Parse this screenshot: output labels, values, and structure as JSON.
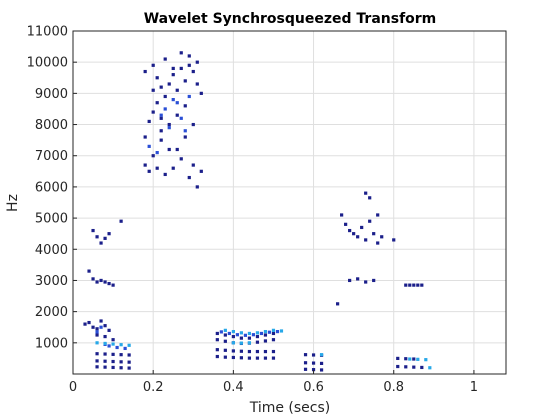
{
  "chart_data": {
    "type": "scatter",
    "title": "Wavelet Synchrosqueezed Transform",
    "xlabel": "Time (secs)",
    "ylabel": "Hz",
    "xlim": [
      0,
      1.08
    ],
    "ylim": [
      0,
      11000
    ],
    "x_ticks": [
      0,
      0.2,
      0.4,
      0.6,
      0.8,
      1
    ],
    "x_tick_labels": [
      "0",
      "0.2",
      "0.4",
      "0.6",
      "0.8",
      "1"
    ],
    "y_ticks": [
      1000,
      2000,
      3000,
      4000,
      5000,
      6000,
      7000,
      8000,
      9000,
      10000,
      11000
    ],
    "y_tick_labels": [
      "1000",
      "2000",
      "3000",
      "4000",
      "5000",
      "6000",
      "7000",
      "8000",
      "9000",
      "10000",
      "11000"
    ],
    "grid": true,
    "colors": {
      "dark": "#1b1f8a",
      "mid": "#2a4fd6",
      "light": "#27a8e8",
      "grid": "#dfdfdf",
      "axis": "#262626"
    },
    "series": [
      {
        "color": "dark",
        "points": [
          [
            0.05,
            4600
          ],
          [
            0.06,
            4400
          ],
          [
            0.08,
            4350
          ],
          [
            0.09,
            4500
          ],
          [
            0.12,
            4900
          ],
          [
            0.07,
            4200
          ],
          [
            0.04,
            3300
          ],
          [
            0.05,
            3050
          ],
          [
            0.06,
            2950
          ],
          [
            0.07,
            3000
          ],
          [
            0.08,
            2950
          ],
          [
            0.09,
            2900
          ],
          [
            0.1,
            2850
          ],
          [
            0.03,
            1600
          ],
          [
            0.04,
            1650
          ],
          [
            0.05,
            1500
          ],
          [
            0.06,
            1450
          ],
          [
            0.07,
            1700
          ],
          [
            0.08,
            1550
          ],
          [
            0.09,
            1400
          ],
          [
            0.06,
            1250
          ],
          [
            0.08,
            1200
          ],
          [
            0.1,
            1100
          ],
          [
            0.06,
            650
          ],
          [
            0.08,
            640
          ],
          [
            0.1,
            630
          ],
          [
            0.12,
            620
          ],
          [
            0.14,
            610
          ],
          [
            0.06,
            420
          ],
          [
            0.08,
            410
          ],
          [
            0.1,
            400
          ],
          [
            0.12,
            390
          ],
          [
            0.14,
            380
          ],
          [
            0.06,
            230
          ],
          [
            0.08,
            220
          ],
          [
            0.1,
            210
          ],
          [
            0.12,
            200
          ],
          [
            0.14,
            190
          ],
          [
            0.18,
            6700
          ],
          [
            0.19,
            6500
          ],
          [
            0.2,
            7000
          ],
          [
            0.21,
            6600
          ],
          [
            0.22,
            7500
          ],
          [
            0.23,
            6400
          ],
          [
            0.24,
            8000
          ],
          [
            0.25,
            6600
          ],
          [
            0.26,
            7200
          ],
          [
            0.27,
            6900
          ],
          [
            0.28,
            7600
          ],
          [
            0.29,
            6300
          ],
          [
            0.3,
            6700
          ],
          [
            0.31,
            6000
          ],
          [
            0.32,
            6500
          ],
          [
            0.18,
            7600
          ],
          [
            0.19,
            8100
          ],
          [
            0.2,
            8400
          ],
          [
            0.21,
            8700
          ],
          [
            0.22,
            9200
          ],
          [
            0.23,
            8900
          ],
          [
            0.24,
            9300
          ],
          [
            0.25,
            9600
          ],
          [
            0.26,
            9100
          ],
          [
            0.27,
            9800
          ],
          [
            0.28,
            9400
          ],
          [
            0.29,
            9900
          ],
          [
            0.3,
            9700
          ],
          [
            0.31,
            9300
          ],
          [
            0.32,
            9000
          ],
          [
            0.18,
            9700
          ],
          [
            0.2,
            9900
          ],
          [
            0.21,
            9500
          ],
          [
            0.23,
            10100
          ],
          [
            0.25,
            9800
          ],
          [
            0.27,
            10300
          ],
          [
            0.29,
            10200
          ],
          [
            0.31,
            10000
          ],
          [
            0.22,
            7800
          ],
          [
            0.24,
            7200
          ],
          [
            0.26,
            8300
          ],
          [
            0.28,
            8600
          ],
          [
            0.3,
            8000
          ],
          [
            0.2,
            9100
          ],
          [
            0.22,
            8200
          ],
          [
            0.36,
            1300
          ],
          [
            0.38,
            1250
          ],
          [
            0.4,
            1200
          ],
          [
            0.42,
            1150
          ],
          [
            0.44,
            1150
          ],
          [
            0.46,
            1200
          ],
          [
            0.48,
            1250
          ],
          [
            0.5,
            1300
          ],
          [
            0.36,
            1100
          ],
          [
            0.38,
            1050
          ],
          [
            0.4,
            1000
          ],
          [
            0.42,
            980
          ],
          [
            0.44,
            990
          ],
          [
            0.46,
            1020
          ],
          [
            0.48,
            1060
          ],
          [
            0.5,
            1100
          ],
          [
            0.36,
            780
          ],
          [
            0.38,
            760
          ],
          [
            0.4,
            740
          ],
          [
            0.42,
            730
          ],
          [
            0.44,
            720
          ],
          [
            0.46,
            720
          ],
          [
            0.48,
            720
          ],
          [
            0.5,
            720
          ],
          [
            0.36,
            560
          ],
          [
            0.38,
            540
          ],
          [
            0.4,
            530
          ],
          [
            0.42,
            520
          ],
          [
            0.44,
            510
          ],
          [
            0.46,
            510
          ],
          [
            0.48,
            510
          ],
          [
            0.5,
            510
          ],
          [
            0.58,
            620
          ],
          [
            0.6,
            610
          ],
          [
            0.62,
            600
          ],
          [
            0.58,
            360
          ],
          [
            0.6,
            350
          ],
          [
            0.62,
            340
          ],
          [
            0.58,
            150
          ],
          [
            0.6,
            140
          ],
          [
            0.62,
            130
          ],
          [
            0.67,
            5100
          ],
          [
            0.68,
            4800
          ],
          [
            0.69,
            4600
          ],
          [
            0.7,
            4500
          ],
          [
            0.71,
            4400
          ],
          [
            0.72,
            4700
          ],
          [
            0.73,
            4300
          ],
          [
            0.74,
            4900
          ],
          [
            0.75,
            4500
          ],
          [
            0.76,
            4200
          ],
          [
            0.77,
            4400
          ],
          [
            0.8,
            4300
          ],
          [
            0.73,
            5800
          ],
          [
            0.74,
            5650
          ],
          [
            0.76,
            5100
          ],
          [
            0.69,
            3000
          ],
          [
            0.71,
            3050
          ],
          [
            0.73,
            2950
          ],
          [
            0.75,
            3000
          ],
          [
            0.83,
            2850
          ],
          [
            0.84,
            2850
          ],
          [
            0.85,
            2850
          ],
          [
            0.86,
            2850
          ],
          [
            0.87,
            2850
          ],
          [
            0.66,
            2250
          ],
          [
            0.81,
            500
          ],
          [
            0.83,
            490
          ],
          [
            0.85,
            480
          ],
          [
            0.81,
            240
          ],
          [
            0.83,
            230
          ],
          [
            0.85,
            220
          ],
          [
            0.87,
            210
          ]
        ]
      },
      {
        "color": "mid",
        "points": [
          [
            0.22,
            8300
          ],
          [
            0.23,
            8500
          ],
          [
            0.24,
            7900
          ],
          [
            0.26,
            8700
          ],
          [
            0.28,
            7800
          ],
          [
            0.19,
            7300
          ],
          [
            0.25,
            8800
          ],
          [
            0.27,
            8200
          ],
          [
            0.29,
            8900
          ],
          [
            0.21,
            7100
          ],
          [
            0.37,
            1350
          ],
          [
            0.39,
            1300
          ],
          [
            0.41,
            1260
          ],
          [
            0.43,
            1240
          ],
          [
            0.45,
            1260
          ],
          [
            0.47,
            1300
          ],
          [
            0.49,
            1340
          ],
          [
            0.51,
            1360
          ],
          [
            0.06,
            1350
          ],
          [
            0.07,
            1500
          ],
          [
            0.08,
            950
          ],
          [
            0.09,
            900
          ],
          [
            0.11,
            850
          ],
          [
            0.13,
            820
          ]
        ]
      },
      {
        "color": "light",
        "points": [
          [
            0.38,
            1400
          ],
          [
            0.4,
            1360
          ],
          [
            0.42,
            1320
          ],
          [
            0.44,
            1300
          ],
          [
            0.46,
            1320
          ],
          [
            0.48,
            1360
          ],
          [
            0.5,
            1400
          ],
          [
            0.52,
            1380
          ],
          [
            0.06,
            1000
          ],
          [
            0.08,
            980
          ],
          [
            0.1,
            960
          ],
          [
            0.12,
            940
          ],
          [
            0.14,
            920
          ],
          [
            0.4,
            1000
          ],
          [
            0.42,
            990
          ],
          [
            0.44,
            1000
          ],
          [
            0.62,
            620
          ],
          [
            0.84,
            480
          ],
          [
            0.86,
            470
          ],
          [
            0.88,
            460
          ],
          [
            0.89,
            200
          ]
        ]
      }
    ]
  }
}
